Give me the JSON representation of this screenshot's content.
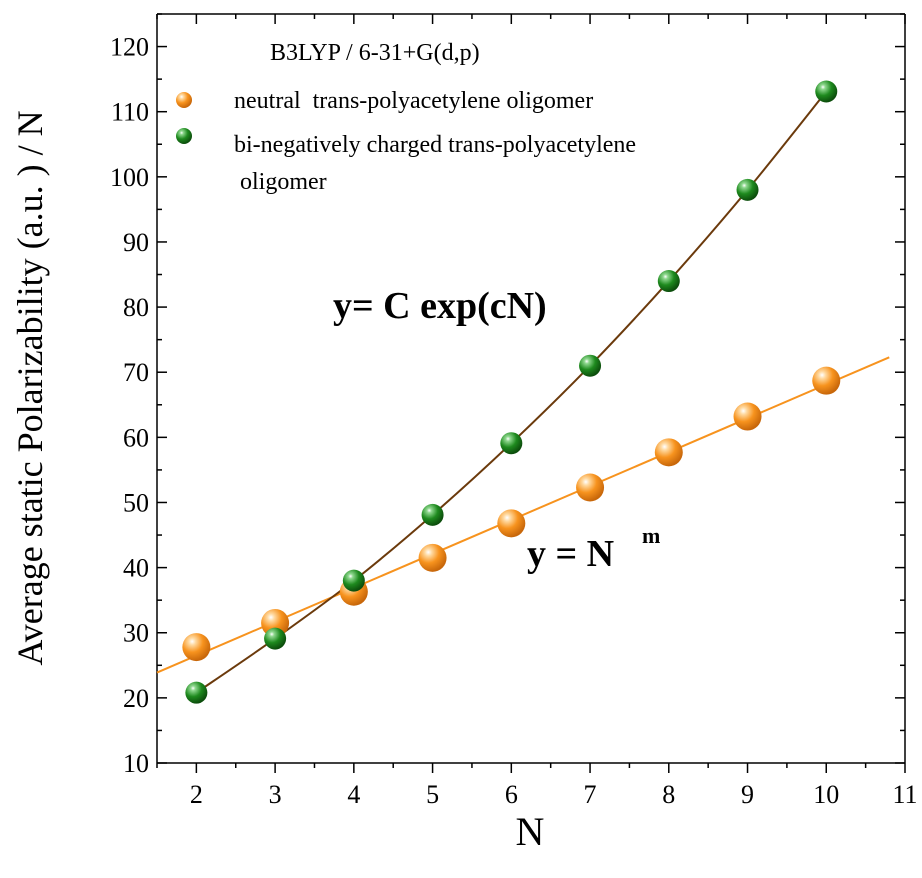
{
  "chart_data": {
    "type": "scatter",
    "title": "B3LYP / 6-31+G(d,p)",
    "xlabel": "N",
    "ylabel": "Average static Polarizability (a.u. ) / N",
    "xlim": [
      1.5,
      11
    ],
    "ylim": [
      10,
      125
    ],
    "x_ticks": [
      2,
      3,
      4,
      5,
      6,
      7,
      8,
      9,
      10,
      11
    ],
    "y_ticks": [
      10,
      20,
      30,
      40,
      50,
      60,
      70,
      80,
      90,
      100,
      110,
      120
    ],
    "legend_position": "top-left",
    "grid": false,
    "series": [
      {
        "name": "neutral  trans-polyacetylene oligomer",
        "color": "#f7931e",
        "line_color": "#f7931e",
        "x": [
          2,
          3,
          4,
          5,
          6,
          7,
          8,
          9,
          10
        ],
        "y": [
          27.8,
          31.5,
          36.3,
          41.5,
          46.8,
          52.3,
          57.7,
          63.2,
          68.7
        ]
      },
      {
        "name_lines": [
          "bi-negatively charged trans-polyacetylene",
          " oligomer"
        ],
        "color": "#1e8a1e",
        "line_color": "#6b3a0c",
        "x": [
          2,
          3,
          4,
          5,
          6,
          7,
          8,
          9,
          10
        ],
        "y": [
          20.8,
          29.1,
          38.0,
          48.1,
          59.1,
          71.0,
          84.0,
          98.0,
          113.1
        ]
      }
    ],
    "annotations": [
      {
        "text": "y= C exp(cN)"
      },
      {
        "text": "y = N",
        "superscript": "m"
      }
    ]
  }
}
